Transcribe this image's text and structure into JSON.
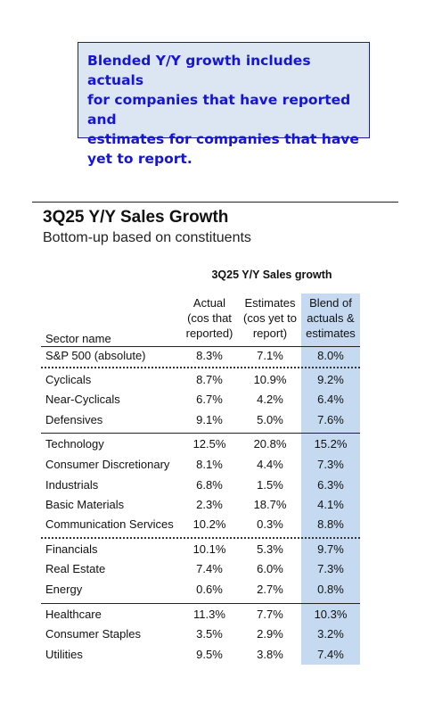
{
  "callout": {
    "lines": [
      "Blended Y/Y growth includes actuals",
      "for companies that have reported and",
      "estimates for companies that have",
      "yet to report."
    ]
  },
  "title": "3Q25 Y/Y Sales Growth",
  "subtitle": "Bottom-up based on constituents",
  "table": {
    "caption": "3Q25 Y/Y Sales growth",
    "headers": {
      "sector": "Sector name",
      "actual": [
        "Actual",
        "(cos that",
        "reported)"
      ],
      "estimates": [
        "Estimates",
        "(cos yet to",
        "report)"
      ],
      "blend": [
        "Blend of",
        "actuals &",
        "estimates"
      ]
    },
    "highlight_color": "#c5daf0",
    "rows": [
      {
        "name": "S&P 500 (absolute)",
        "actual": "8.3%",
        "estimates": "7.1%",
        "blend": "8.0%"
      },
      {
        "name": "Cyclicals",
        "actual": "8.7%",
        "estimates": "10.9%",
        "blend": "9.2%"
      },
      {
        "name": "Near-Cyclicals",
        "actual": "6.7%",
        "estimates": "4.2%",
        "blend": "6.4%"
      },
      {
        "name": "Defensives",
        "actual": "9.1%",
        "estimates": "5.0%",
        "blend": "7.6%"
      },
      {
        "name": "Technology",
        "actual": "12.5%",
        "estimates": "20.8%",
        "blend": "15.2%"
      },
      {
        "name": "Consumer Discretionary",
        "actual": "8.1%",
        "estimates": "4.4%",
        "blend": "7.3%"
      },
      {
        "name": "Industrials",
        "actual": "6.8%",
        "estimates": "1.5%",
        "blend": "6.3%"
      },
      {
        "name": "Basic Materials",
        "actual": "2.3%",
        "estimates": "18.7%",
        "blend": "4.1%"
      },
      {
        "name": "Communication Services",
        "actual": "10.2%",
        "estimates": "0.3%",
        "blend": "8.8%"
      },
      {
        "name": "Financials",
        "actual": "10.1%",
        "estimates": "5.3%",
        "blend": "9.7%"
      },
      {
        "name": "Real Estate",
        "actual": "7.4%",
        "estimates": "6.0%",
        "blend": "7.3%"
      },
      {
        "name": "Energy",
        "actual": "0.6%",
        "estimates": "2.7%",
        "blend": "0.8%"
      },
      {
        "name": "Healthcare",
        "actual": "11.3%",
        "estimates": "7.7%",
        "blend": "10.3%"
      },
      {
        "name": "Consumer Staples",
        "actual": "3.5%",
        "estimates": "2.9%",
        "blend": "3.2%"
      },
      {
        "name": "Utilities",
        "actual": "9.5%",
        "estimates": "3.8%",
        "blend": "7.4%"
      }
    ]
  }
}
